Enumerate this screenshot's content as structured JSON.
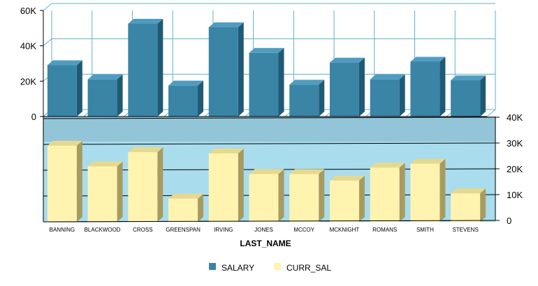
{
  "chart_data": {
    "type": "bar",
    "categories": [
      "BANNING",
      "BLACKWOOD",
      "CROSS",
      "GREENSPAN",
      "IRVING",
      "JONES",
      "MCCOY",
      "MCKNIGHT",
      "ROMANS",
      "SMITH",
      "STEVENS"
    ],
    "xlabel": "LAST_NAME",
    "legend_position": "bottom",
    "panels": [
      {
        "id": "top",
        "series_name": "SALARY",
        "axis_side": "left",
        "ylim": [
          0,
          60000
        ],
        "ticks": [
          0,
          20000,
          40000,
          60000
        ],
        "tick_labels": [
          "0",
          "20K",
          "40K",
          "60K"
        ],
        "values": [
          29000,
          21000,
          52500,
          17500,
          50500,
          36000,
          18000,
          30500,
          21000,
          31000,
          20500
        ],
        "grid": true
      },
      {
        "id": "bottom",
        "series_name": "CURR_SAL",
        "axis_side": "right",
        "ylim": [
          0,
          40000
        ],
        "ticks": [
          0,
          10000,
          20000,
          30000,
          40000
        ],
        "tick_labels": [
          "0",
          "10K",
          "20K",
          "30K",
          "40K"
        ],
        "values": [
          29500,
          21500,
          27000,
          9000,
          26500,
          18500,
          18500,
          16000,
          21000,
          22500,
          11000
        ],
        "grid": true
      }
    ],
    "legend": [
      {
        "label": "SALARY",
        "color": "#3a84a6"
      },
      {
        "label": "CURR_SAL",
        "color": "#fff3b0"
      }
    ]
  },
  "colors": {
    "salary_front": "#3a84a6",
    "salary_top": "#4f9cc0",
    "salary_side": "#1f5a75",
    "curr_front": "#fff3b0",
    "curr_top": "#e6d98f",
    "curr_side": "#a89b60",
    "top_grid": "#5fb0cc",
    "bottom_wall": "#a9dced",
    "bottom_floor": "#93c5d8"
  }
}
